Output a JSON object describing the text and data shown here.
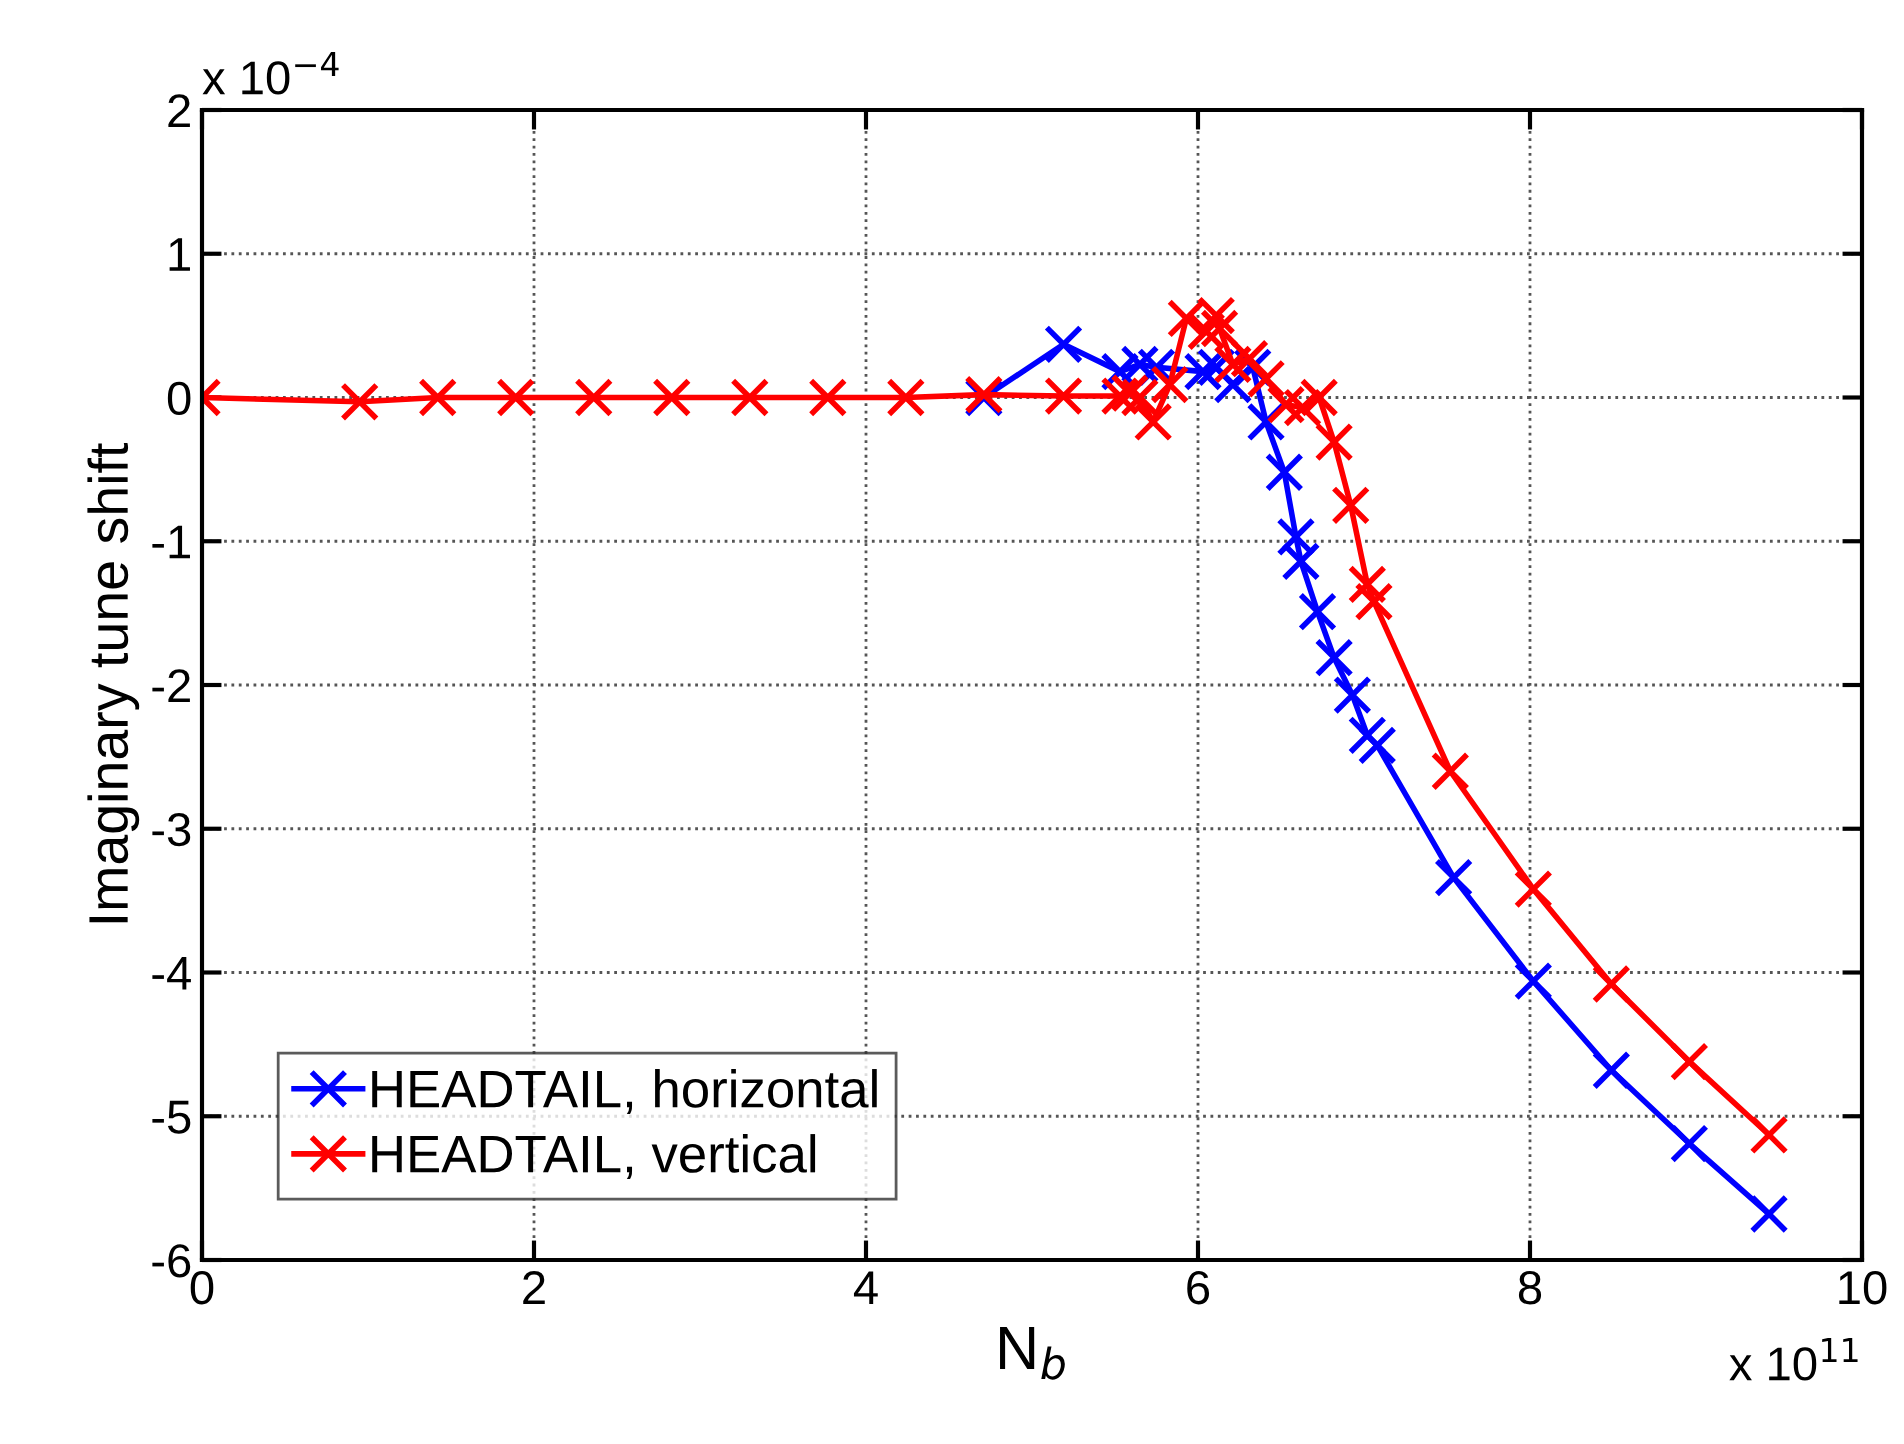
{
  "chart_data": {
    "type": "line",
    "xlabel": "N$_{b}$",
    "ylabel": "Imaginary tune shift",
    "xlim": [
      0,
      10
    ],
    "xticks": [
      0,
      2,
      4,
      6,
      8,
      10
    ],
    "ylim": [
      -6,
      2
    ],
    "yticks": [
      -6,
      -5,
      -4,
      -3,
      -2,
      -1,
      0,
      1,
      2
    ],
    "grid": true,
    "legend": "bottom left",
    "marker": "cross",
    "line_style": "solid",
    "annotations": [
      "x 10$^{−4}$",
      "x 10$^{11}$"
    ],
    "series": [
      {
        "name": "HEADTAIL, horizontal",
        "color": "#0000ff",
        "x": [
          4.71,
          5.19,
          5.53,
          5.65,
          5.75,
          6.03,
          6.11,
          6.21,
          6.33,
          6.41,
          6.52,
          6.59,
          6.62,
          6.72,
          6.82,
          6.93,
          7.02,
          7.08,
          7.54,
          8.02,
          8.49,
          8.96,
          9.44
        ],
        "values": [
          0,
          0.37,
          0.18,
          0.23,
          0.21,
          0.18,
          0.21,
          0.09,
          0.21,
          -0.17,
          -0.52,
          -0.97,
          -1.14,
          -1.49,
          -1.81,
          -2.07,
          -2.35,
          -2.42,
          -3.34,
          -4.06,
          -4.68,
          -5.19,
          -5.68
        ]
      },
      {
        "name": "HEADTAIL, vertical",
        "color": "#ff0000",
        "x": [
          0,
          0.95,
          1.42,
          1.89,
          2.36,
          2.83,
          3.3,
          3.77,
          4.24,
          4.71,
          5.19,
          5.53,
          5.59,
          5.65,
          5.73,
          5.83,
          5.93,
          6.05,
          6.11,
          6.13,
          6.21,
          6.31,
          6.41,
          6.53,
          6.63,
          6.73,
          6.82,
          6.92,
          7.02,
          7.06,
          7.52,
          8.02,
          8.49,
          8.96,
          9.44
        ],
        "values": [
          0,
          -0.03,
          0,
          0,
          0,
          0,
          0,
          0,
          0,
          0.02,
          0.01,
          0.01,
          0.03,
          0,
          -0.17,
          0.09,
          0.55,
          0.46,
          0.57,
          0.48,
          0.23,
          0.27,
          0.13,
          -0.05,
          -0.07,
          0,
          -0.31,
          -0.75,
          -1.3,
          -1.42,
          -2.6,
          -3.42,
          -4.08,
          -4.62,
          -5.13
        ]
      }
    ]
  }
}
